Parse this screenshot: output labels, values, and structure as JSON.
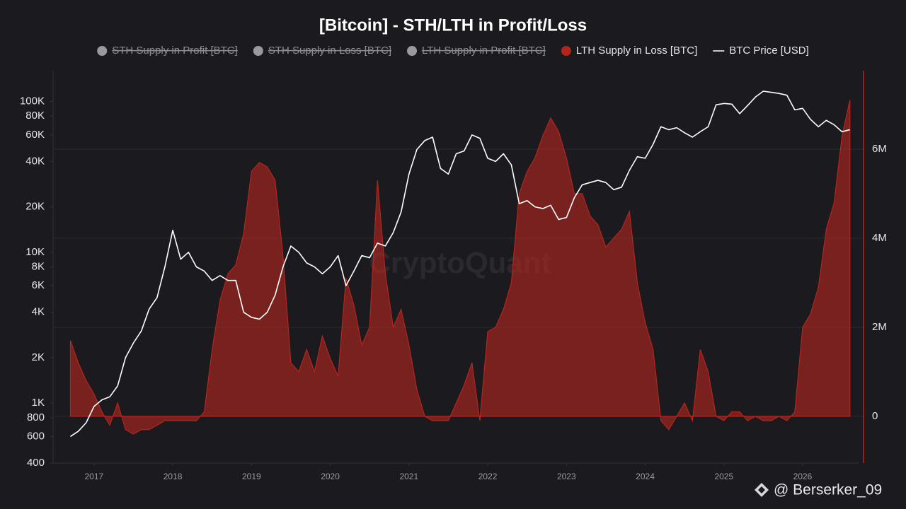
{
  "chart_data": {
    "type": "combo",
    "title": "[Bitcoin] - STH/LTH in Profit/Loss",
    "watermark": "CryptoQuant",
    "credit": "@ Berserker_09",
    "x": [
      2016.7,
      2016.8,
      2016.9,
      2017.0,
      2017.1,
      2017.2,
      2017.3,
      2017.4,
      2017.5,
      2017.6,
      2017.7,
      2017.8,
      2017.9,
      2018.0,
      2018.1,
      2018.2,
      2018.3,
      2018.4,
      2018.5,
      2018.6,
      2018.7,
      2018.8,
      2018.9,
      2019.0,
      2019.1,
      2019.2,
      2019.3,
      2019.4,
      2019.5,
      2019.6,
      2019.7,
      2019.8,
      2019.9,
      2020.0,
      2020.1,
      2020.2,
      2020.3,
      2020.4,
      2020.5,
      2020.6,
      2020.7,
      2020.8,
      2020.9,
      2021.0,
      2021.1,
      2021.2,
      2021.3,
      2021.4,
      2021.5,
      2021.6,
      2021.7,
      2021.8,
      2021.9,
      2022.0,
      2022.1,
      2022.2,
      2022.3,
      2022.4,
      2022.5,
      2022.6,
      2022.7,
      2022.8,
      2022.9,
      2023.0,
      2023.1,
      2023.2,
      2023.3,
      2023.4,
      2023.5,
      2023.6,
      2023.7,
      2023.8,
      2023.9,
      2024.0,
      2024.1,
      2024.2,
      2024.3,
      2024.4,
      2024.5,
      2024.6,
      2024.7,
      2024.8,
      2024.9,
      2025.0,
      2025.1,
      2025.2,
      2025.3,
      2025.4,
      2025.5,
      2025.6,
      2025.7,
      2025.8,
      2025.9,
      2026.0,
      2026.1,
      2026.2,
      2026.3,
      2026.4,
      2026.5,
      2026.6
    ],
    "series": [
      {
        "name": "STH Supply in Profit [BTC]",
        "color": "#9a99a0",
        "hidden": true
      },
      {
        "name": "STH Supply in Loss [BTC]",
        "color": "#9a99a0",
        "hidden": true
      },
      {
        "name": "LTH Supply in Profit [BTC]",
        "color": "#9a99a0",
        "hidden": true
      },
      {
        "name": "LTH Supply in Loss [BTC]",
        "color": "#b3261e",
        "type": "area",
        "axis": "y2",
        "values": [
          1700000,
          1200000,
          800000,
          500000,
          100000,
          -200000,
          300000,
          -300000,
          -400000,
          -300000,
          -300000,
          -200000,
          -100000,
          -100000,
          -100000,
          -100000,
          -100000,
          100000,
          1500000,
          2600000,
          3200000,
          3400000,
          4100000,
          5500000,
          5700000,
          5600000,
          5300000,
          3600000,
          1200000,
          1000000,
          1500000,
          1000000,
          1800000,
          1300000,
          900000,
          3100000,
          2500000,
          1600000,
          2000000,
          5300000,
          3200000,
          2000000,
          2400000,
          1600000,
          600000,
          0,
          -100000,
          -100000,
          -100000,
          300000,
          700000,
          1200000,
          -100000,
          1900000,
          2000000,
          2400000,
          3000000,
          5000000,
          5500000,
          5800000,
          6300000,
          6700000,
          6400000,
          5800000,
          5000000,
          5000000,
          4500000,
          4300000,
          3800000,
          4000000,
          4200000,
          4600000,
          3000000,
          2100000,
          1500000,
          -100000,
          -300000,
          0,
          300000,
          -100000,
          1500000,
          1000000,
          0,
          -100000,
          100000,
          100000,
          -100000,
          0,
          -100000,
          -100000,
          0,
          -100000,
          100000,
          2000000,
          2300000,
          2900000,
          4200000,
          4800000,
          6300000,
          7100000
        ]
      },
      {
        "name": "BTC Price [USD]",
        "color": "#ffffff",
        "type": "line",
        "values": [
          600,
          650,
          740,
          950,
          1050,
          1100,
          1300,
          2000,
          2500,
          3000,
          4200,
          5000,
          8000,
          14000,
          9000,
          10000,
          8000,
          7500,
          6500,
          7000,
          6500,
          6500,
          4000,
          3700,
          3600,
          4000,
          5200,
          8000,
          11000,
          10000,
          8500,
          8000,
          7200,
          8000,
          9500,
          6000,
          7500,
          9500,
          9200,
          11500,
          11000,
          13500,
          18500,
          33000,
          48000,
          55000,
          58000,
          36000,
          33000,
          45000,
          47000,
          60000,
          57000,
          42000,
          40000,
          45000,
          38000,
          21000,
          22000,
          20000,
          19500,
          20500,
          16500,
          17000,
          23000,
          28000,
          29000,
          30000,
          29000,
          26000,
          27000,
          35000,
          43000,
          42000,
          52000,
          68000,
          65000,
          67000,
          62000,
          58000,
          63000,
          68000,
          95000,
          97000,
          96000,
          83000,
          94000,
          107000,
          117000,
          115000,
          113000,
          110000,
          88000,
          90000,
          76000,
          68000,
          75000,
          70000,
          63000,
          65000
        ]
      }
    ],
    "xlim": [
      2016.48,
      2026.71
    ],
    "xticks": [
      2017,
      2018,
      2019,
      2020,
      2021,
      2022,
      2023,
      2024,
      2025,
      2026
    ],
    "ylim": [
      400,
      160000
    ],
    "ylog": true,
    "yticks": [
      400,
      600,
      800,
      {
        "value": 1000,
        "label": "1K"
      },
      {
        "value": 2000,
        "label": "2K"
      },
      {
        "value": 4000,
        "label": "4K"
      },
      {
        "value": 6000,
        "label": "6K"
      },
      {
        "value": 8000,
        "label": "8K"
      },
      {
        "value": 10000,
        "label": "10K"
      },
      {
        "value": 20000,
        "label": "20K"
      },
      {
        "value": 40000,
        "label": "40K"
      },
      {
        "value": 60000,
        "label": "60K"
      },
      {
        "value": 80000,
        "label": "80K"
      },
      {
        "value": 100000,
        "label": "100K"
      }
    ],
    "y2lim": [
      -1050000,
      7760000
    ],
    "y2ticks": [
      0,
      {
        "value": 2000000,
        "label": "2M"
      },
      {
        "value": 4000000,
        "label": "4M"
      },
      {
        "value": 6000000,
        "label": "6M"
      }
    ],
    "y2_axis_color": "#b3261e",
    "grid": true
  }
}
